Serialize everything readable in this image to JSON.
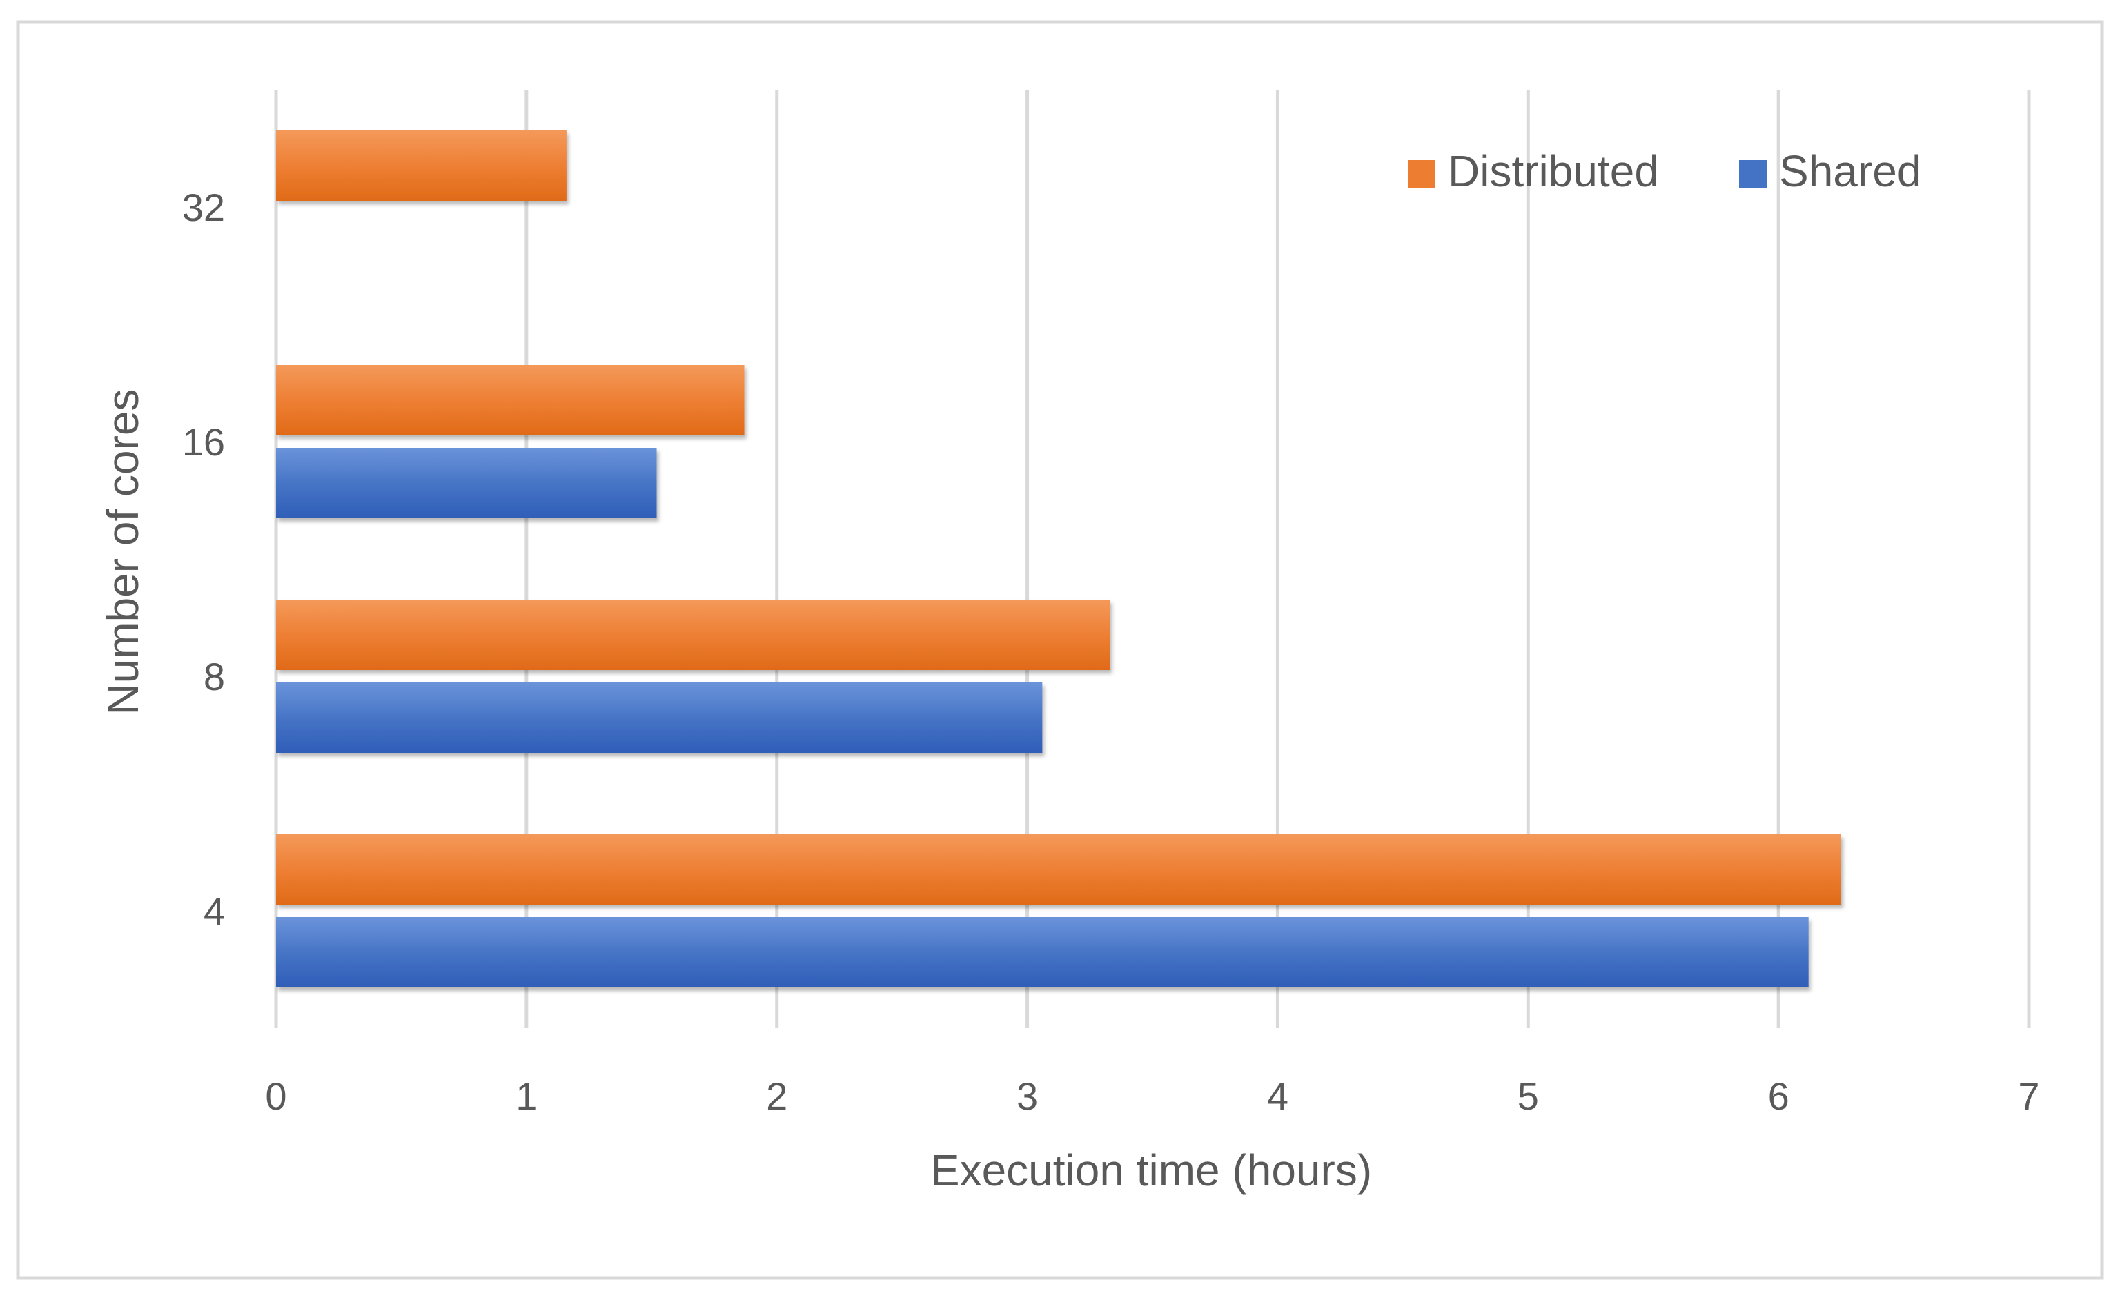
{
  "chart_data": {
    "type": "bar",
    "orientation": "horizontal",
    "categories": [
      "4",
      "8",
      "16",
      "32"
    ],
    "series": [
      {
        "name": "Shared",
        "color": "#4472C4",
        "values": [
          6.12,
          3.06,
          1.52,
          null
        ]
      },
      {
        "name": "Distributed",
        "color": "#ED7D31",
        "values": [
          6.25,
          3.33,
          1.87,
          1.16
        ]
      }
    ],
    "xlabel": "Execution time (hours)",
    "ylabel": "Number of cores",
    "xlim": [
      0,
      7
    ],
    "xticks": [
      "0",
      "1",
      "2",
      "3",
      "4",
      "5",
      "6",
      "7"
    ],
    "grid": "vertical",
    "legend": {
      "placement": "top-right",
      "entries": [
        "Distributed",
        "Shared"
      ]
    }
  }
}
